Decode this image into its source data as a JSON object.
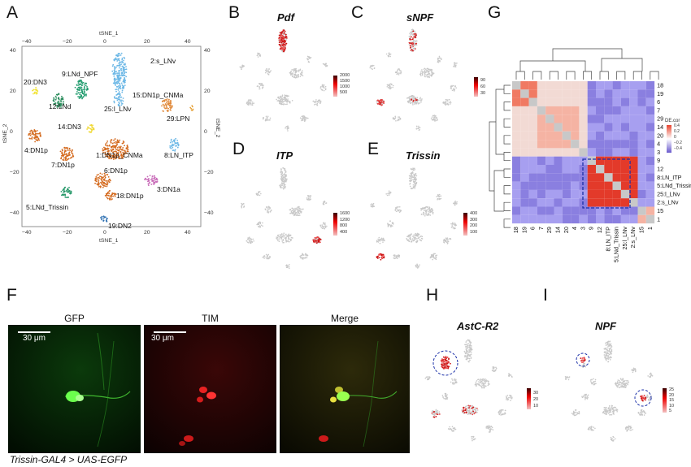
{
  "panels": {
    "A": {
      "letter": "A",
      "axis_top": "tSNE_1",
      "axis_bottom": "tSNE_1",
      "axis_left": "tSNE_2",
      "axis_right": "tSNE_2",
      "ticks_x": [
        "−40",
        "−20",
        "0",
        "20",
        "40"
      ],
      "ticks_y": [
        "40",
        "20",
        "0",
        "−20",
        "−40"
      ],
      "clusters": [
        "2:s_LNv",
        "9:LNd_NPF",
        "20:DN3",
        "12:LNd",
        "15:DN1p_CNMa",
        "25:l_LNv",
        "29:LPN",
        "14:DN3",
        "4:DN1p",
        "1:DN1p_CNMa",
        "8:LN_ITP",
        "7:DN1p",
        "6:DN1p",
        "3:DN1a",
        "5:LNd_Trissin",
        "18:DN1p",
        "19:DN2"
      ]
    },
    "B": {
      "letter": "B",
      "gene": "Pdf",
      "scale": [
        "2000",
        "1500",
        "1000",
        "500"
      ]
    },
    "C": {
      "letter": "C",
      "gene": "sNPF",
      "scale": [
        "90",
        "60",
        "30"
      ]
    },
    "D": {
      "letter": "D",
      "gene": "ITP",
      "scale": [
        "1600",
        "1200",
        "800",
        "400"
      ]
    },
    "E": {
      "letter": "E",
      "gene": "Trissin",
      "scale": [
        "400",
        "300",
        "200",
        "100"
      ]
    },
    "F": {
      "letter": "F",
      "titles": [
        "GFP",
        "TIM",
        "Merge"
      ],
      "scalebar": "30 μm",
      "caption": "Trissin-GAL4 > UAS-EGFP"
    },
    "G": {
      "letter": "G",
      "legend_title": "DE.cor",
      "legend_ticks": [
        "0.4",
        "0.2",
        "0",
        "−0.2",
        "−0.4"
      ],
      "row_labels": [
        "18",
        "19",
        "6",
        "7",
        "29",
        "14",
        "20",
        "4",
        "3",
        "9",
        "12",
        "8:LN_ITP",
        "5:LNd_Trissin",
        "25:l_LNv",
        "2:s_LNv",
        "15",
        "1"
      ],
      "col_labels": [
        "18",
        "19",
        "6",
        "7",
        "29",
        "14",
        "20",
        "4",
        "3",
        "9",
        "12",
        "8:LN_ITP",
        "5:LNd_Trissin",
        "25:l_LNv",
        "2:s_LNv",
        "15",
        "1"
      ]
    },
    "H": {
      "letter": "H",
      "gene": "AstC-R2",
      "scale": [
        "30",
        "20",
        "10"
      ]
    },
    "I": {
      "letter": "I",
      "gene": "NPF",
      "scale": [
        "25",
        "20",
        "15",
        "10",
        "5"
      ]
    }
  },
  "colors": {
    "expr_high": "#cc1111",
    "expr_low": "#c8c8c8",
    "heat_pos": "#e8432e",
    "heat_neg": "#6a5acd",
    "box": "#1a2fa8"
  }
}
